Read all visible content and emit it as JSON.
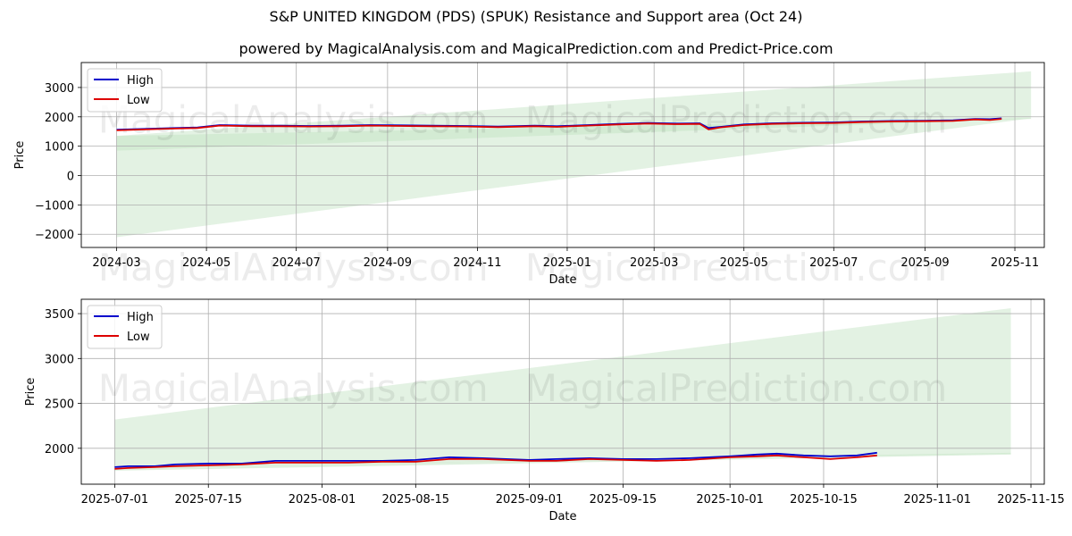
{
  "title": "S&P UNITED KINGDOM (PDS) (SPUK) Resistance and Support area (Oct 24)",
  "subtitle": "powered by MagicalAnalysis.com and MagicalPrediction.com and Predict-Price.com",
  "watermarks": [
    "MagicalAnalysis.com",
    "MagicalPrediction.com"
  ],
  "colors": {
    "high": "#0000cc",
    "low": "#dd0000",
    "band": "#c8e6c8",
    "grid": "#b0b0b0"
  },
  "chart_data": [
    {
      "type": "line",
      "xlabel": "Date",
      "ylabel": "Price",
      "ylim": [
        -2450,
        3850
      ],
      "xlim": [
        "2024-02-06",
        "2025-11-21"
      ],
      "yticks": [
        -2000,
        -1000,
        0,
        1000,
        2000,
        3000
      ],
      "ytick_labels": [
        "−2000",
        "−1000",
        "0",
        "1000",
        "2000",
        "3000"
      ],
      "xticks": [
        "2024-03-01",
        "2024-05-01",
        "2024-07-01",
        "2024-09-01",
        "2024-11-01",
        "2025-01-01",
        "2025-03-01",
        "2025-05-01",
        "2025-07-01",
        "2025-09-01",
        "2025-11-01"
      ],
      "xtick_labels": [
        "2024-03",
        "2024-05",
        "2024-07",
        "2024-09",
        "2024-11",
        "2025-01",
        "2025-03",
        "2025-05",
        "2025-07",
        "2025-09",
        "2025-11"
      ],
      "legend": {
        "position": "top-left",
        "entries": [
          "High",
          "Low"
        ]
      },
      "grid": true,
      "bands": [
        {
          "name": "outer-band",
          "x": [
            "2024-03-01",
            "2025-11-12"
          ],
          "lower": [
            -2100,
            1950
          ],
          "upper": [
            1350,
            3550
          ]
        },
        {
          "name": "inner-band",
          "x": [
            "2024-03-01",
            "2025-11-12"
          ],
          "lower": [
            850,
            1930
          ],
          "upper": [
            1350,
            1960
          ]
        }
      ],
      "series": [
        {
          "name": "High",
          "x": [
            "2024-03-01",
            "2024-03-20",
            "2024-04-10",
            "2024-04-25",
            "2024-05-10",
            "2024-06-01",
            "2024-06-20",
            "2024-07-10",
            "2024-08-01",
            "2024-08-20",
            "2024-09-10",
            "2024-10-01",
            "2024-10-25",
            "2024-11-15",
            "2024-12-10",
            "2024-12-25",
            "2025-01-15",
            "2025-02-05",
            "2025-02-25",
            "2025-03-15",
            "2025-04-01",
            "2025-04-07",
            "2025-04-15",
            "2025-05-01",
            "2025-05-20",
            "2025-06-10",
            "2025-07-01",
            "2025-07-20",
            "2025-08-10",
            "2025-09-01",
            "2025-09-20",
            "2025-10-05",
            "2025-10-15",
            "2025-10-23"
          ],
          "values": [
            1560,
            1590,
            1620,
            1640,
            1720,
            1700,
            1700,
            1690,
            1700,
            1720,
            1710,
            1700,
            1690,
            1670,
            1700,
            1680,
            1720,
            1760,
            1790,
            1770,
            1780,
            1620,
            1660,
            1740,
            1780,
            1800,
            1810,
            1840,
            1860,
            1870,
            1880,
            1930,
            1920,
            1950
          ]
        },
        {
          "name": "Low",
          "x": [
            "2024-03-01",
            "2024-03-20",
            "2024-04-10",
            "2024-04-25",
            "2024-05-10",
            "2024-06-01",
            "2024-06-20",
            "2024-07-10",
            "2024-08-01",
            "2024-08-20",
            "2024-09-10",
            "2024-10-01",
            "2024-10-25",
            "2024-11-15",
            "2024-12-10",
            "2024-12-25",
            "2025-01-15",
            "2025-02-05",
            "2025-02-25",
            "2025-03-15",
            "2025-04-01",
            "2025-04-07",
            "2025-04-15",
            "2025-05-01",
            "2025-05-20",
            "2025-06-10",
            "2025-07-01",
            "2025-07-20",
            "2025-08-10",
            "2025-09-01",
            "2025-09-20",
            "2025-10-05",
            "2025-10-15",
            "2025-10-23"
          ],
          "values": [
            1540,
            1570,
            1600,
            1620,
            1700,
            1680,
            1680,
            1670,
            1680,
            1700,
            1690,
            1680,
            1670,
            1650,
            1680,
            1660,
            1700,
            1740,
            1770,
            1750,
            1760,
            1570,
            1640,
            1720,
            1760,
            1780,
            1790,
            1820,
            1840,
            1850,
            1860,
            1910,
            1890,
            1930
          ]
        }
      ]
    },
    {
      "type": "line",
      "xlabel": "Date",
      "ylabel": "Price",
      "ylim": [
        1600,
        3660
      ],
      "xlim": [
        "2025-06-26",
        "2025-11-17"
      ],
      "yticks": [
        2000,
        2500,
        3000,
        3500
      ],
      "ytick_labels": [
        "2000",
        "2500",
        "3000",
        "3500"
      ],
      "xticks": [
        "2025-07-01",
        "2025-07-15",
        "2025-08-01",
        "2025-08-15",
        "2025-09-01",
        "2025-09-15",
        "2025-10-01",
        "2025-10-15",
        "2025-11-01",
        "2025-11-15"
      ],
      "xtick_labels": [
        "2025-07-01",
        "2025-07-15",
        "2025-08-01",
        "2025-08-15",
        "2025-09-01",
        "2025-09-15",
        "2025-10-01",
        "2025-10-15",
        "2025-11-01",
        "2025-11-15"
      ],
      "legend": {
        "position": "top-left",
        "entries": [
          "High",
          "Low"
        ]
      },
      "grid": true,
      "bands": [
        {
          "name": "outer-band",
          "x": [
            "2025-07-01",
            "2025-11-12"
          ],
          "lower": [
            1790,
            1940
          ],
          "upper": [
            2320,
            3560
          ]
        },
        {
          "name": "inner-band",
          "x": [
            "2025-07-01",
            "2025-11-12"
          ],
          "lower": [
            1750,
            1930
          ],
          "upper": [
            1790,
            1950
          ]
        }
      ],
      "series": [
        {
          "name": "High",
          "x": [
            "2025-07-01",
            "2025-07-03",
            "2025-07-07",
            "2025-07-10",
            "2025-07-15",
            "2025-07-20",
            "2025-07-25",
            "2025-07-30",
            "2025-08-05",
            "2025-08-10",
            "2025-08-15",
            "2025-08-20",
            "2025-08-25",
            "2025-09-01",
            "2025-09-05",
            "2025-09-10",
            "2025-09-15",
            "2025-09-20",
            "2025-09-25",
            "2025-10-01",
            "2025-10-05",
            "2025-10-08",
            "2025-10-12",
            "2025-10-16",
            "2025-10-20",
            "2025-10-23"
          ],
          "values": [
            1790,
            1800,
            1800,
            1820,
            1830,
            1830,
            1860,
            1860,
            1860,
            1860,
            1870,
            1900,
            1890,
            1870,
            1880,
            1890,
            1880,
            1880,
            1890,
            1910,
            1930,
            1940,
            1920,
            1910,
            1920,
            1950
          ]
        },
        {
          "name": "Low",
          "x": [
            "2025-07-01",
            "2025-07-03",
            "2025-07-07",
            "2025-07-10",
            "2025-07-15",
            "2025-07-20",
            "2025-07-25",
            "2025-07-30",
            "2025-08-05",
            "2025-08-10",
            "2025-08-15",
            "2025-08-20",
            "2025-08-25",
            "2025-09-01",
            "2025-09-05",
            "2025-09-10",
            "2025-09-15",
            "2025-09-20",
            "2025-09-25",
            "2025-10-01",
            "2025-10-05",
            "2025-10-08",
            "2025-10-12",
            "2025-10-16",
            "2025-10-20",
            "2025-10-23"
          ],
          "values": [
            1770,
            1780,
            1790,
            1800,
            1810,
            1820,
            1840,
            1840,
            1840,
            1850,
            1850,
            1880,
            1880,
            1860,
            1860,
            1880,
            1870,
            1860,
            1870,
            1900,
            1910,
            1920,
            1900,
            1880,
            1900,
            1920
          ]
        }
      ]
    }
  ]
}
